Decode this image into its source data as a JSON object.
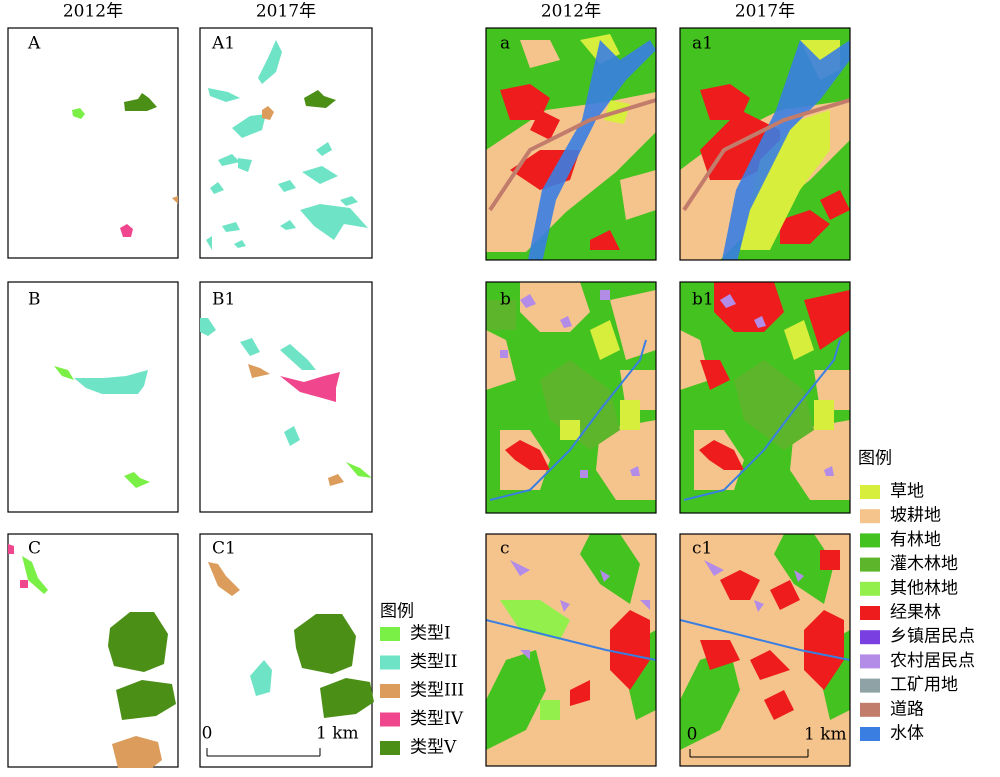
{
  "headers": [
    "2012年",
    "2017年",
    "2012年",
    "2017年"
  ],
  "panels": [
    "A",
    "A1",
    "B",
    "B1",
    "C",
    "C1",
    "a",
    "a1",
    "b",
    "b1",
    "c",
    "c1"
  ],
  "legend_types": {
    "title": "图例",
    "items": [
      {
        "label": "类型I",
        "color": "#7af046"
      },
      {
        "label": "类型II",
        "color": "#6fe3c6"
      },
      {
        "label": "类型III",
        "color": "#dc9c5c"
      },
      {
        "label": "类型IV",
        "color": "#f0468e"
      },
      {
        "label": "类型V",
        "color": "#4b8f17"
      }
    ]
  },
  "legend_landuse": {
    "title": "图例",
    "items": [
      {
        "label": "草地",
        "color": "#d8ee3c"
      },
      {
        "label": "坡耕地",
        "color": "#f5c48c"
      },
      {
        "label": "有林地",
        "color": "#44c21f"
      },
      {
        "label": "灌木林地",
        "color": "#5db52b"
      },
      {
        "label": "其他林地",
        "color": "#93f04c"
      },
      {
        "label": "经果林",
        "color": "#ee1c1c"
      },
      {
        "label": "乡镇居民点",
        "color": "#7a3fe0"
      },
      {
        "label": "农村居民点",
        "color": "#b38ce8"
      },
      {
        "label": "工矿用地",
        "color": "#8fa2a6"
      },
      {
        "label": "道路",
        "color": "#c27c6c"
      },
      {
        "label": "水体",
        "color": "#3a7ee2"
      }
    ]
  },
  "scale_left": {
    "start": "0",
    "end": "1 km"
  },
  "scale_right": {
    "start": "0",
    "end": "1 km"
  }
}
